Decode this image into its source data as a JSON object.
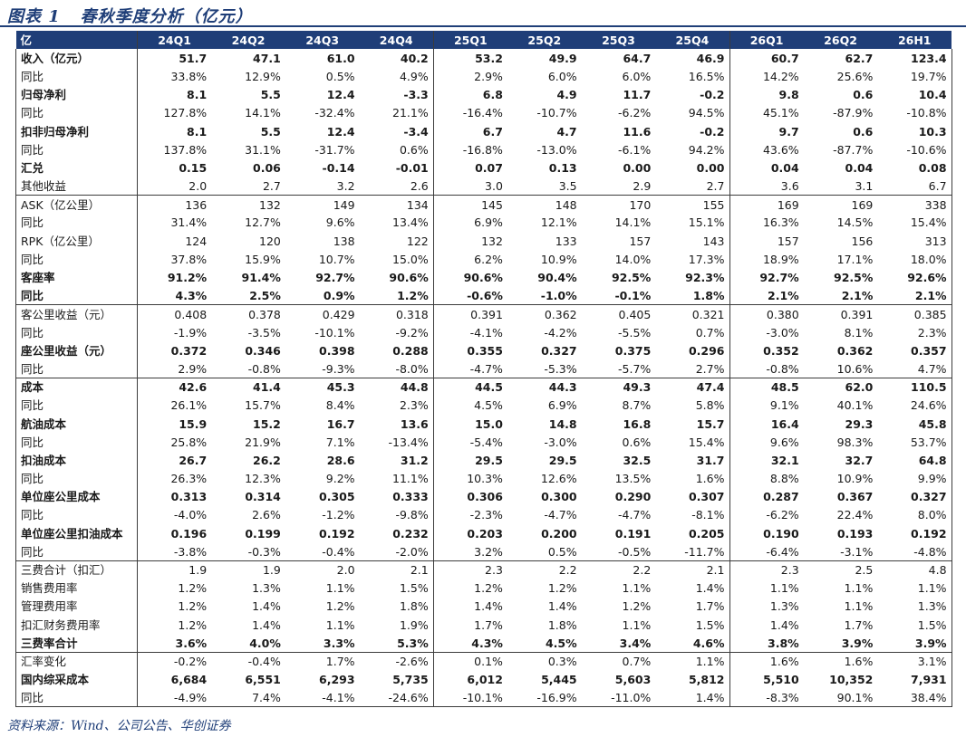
{
  "title": "图表 1   春秋季度分析（亿元）",
  "source": "资料来源：Wind、公司公告、华创证券",
  "colors": {
    "header_bg": "#1f3e78",
    "header_text": "#ffffff",
    "title_color": "#1f3e78",
    "border": "#3c3c3c"
  },
  "table": {
    "headers": [
      "亿",
      "24Q1",
      "24Q2",
      "24Q3",
      "24Q4",
      "25Q1",
      "25Q2",
      "25Q3",
      "25Q4",
      "26Q1",
      "26Q2",
      "26H1"
    ],
    "rows": [
      {
        "label": "收入（亿元）",
        "bold": true,
        "section_start": false,
        "values": [
          "51.7",
          "47.1",
          "61.0",
          "40.2",
          "53.2",
          "49.9",
          "64.7",
          "46.9",
          "60.7",
          "62.7",
          "123.4"
        ]
      },
      {
        "label": "同比",
        "bold": false,
        "section_start": false,
        "values": [
          "33.8%",
          "12.9%",
          "0.5%",
          "4.9%",
          "2.9%",
          "6.0%",
          "6.0%",
          "16.5%",
          "14.2%",
          "25.6%",
          "19.7%"
        ]
      },
      {
        "label": "归母净利",
        "bold": true,
        "section_start": false,
        "values": [
          "8.1",
          "5.5",
          "12.4",
          "-3.3",
          "6.8",
          "4.9",
          "11.7",
          "-0.2",
          "9.8",
          "0.6",
          "10.4"
        ]
      },
      {
        "label": "同比",
        "bold": false,
        "section_start": false,
        "values": [
          "127.8%",
          "14.1%",
          "-32.4%",
          "21.1%",
          "-16.4%",
          "-10.7%",
          "-6.2%",
          "94.5%",
          "45.1%",
          "-87.9%",
          "-10.8%"
        ]
      },
      {
        "label": "扣非归母净利",
        "bold": true,
        "section_start": false,
        "values": [
          "8.1",
          "5.5",
          "12.4",
          "-3.4",
          "6.7",
          "4.7",
          "11.6",
          "-0.2",
          "9.7",
          "0.6",
          "10.3"
        ]
      },
      {
        "label": "同比",
        "bold": false,
        "section_start": false,
        "values": [
          "137.8%",
          "31.1%",
          "-31.7%",
          "0.6%",
          "-16.8%",
          "-13.0%",
          "-6.1%",
          "94.2%",
          "43.6%",
          "-87.7%",
          "-10.6%"
        ]
      },
      {
        "label": "汇兑",
        "bold": true,
        "section_start": false,
        "values": [
          "0.15",
          "0.06",
          "-0.14",
          "-0.01",
          "0.07",
          "0.13",
          "0.00",
          "0.00",
          "0.04",
          "0.04",
          "0.08"
        ]
      },
      {
        "label": "其他收益",
        "bold": false,
        "section_start": false,
        "values": [
          "2.0",
          "2.7",
          "3.2",
          "2.6",
          "3.0",
          "3.5",
          "2.9",
          "2.7",
          "3.6",
          "3.1",
          "6.7"
        ]
      },
      {
        "label": "ASK（亿公里）",
        "bold": false,
        "section_start": true,
        "values": [
          "136",
          "132",
          "149",
          "134",
          "145",
          "148",
          "170",
          "155",
          "169",
          "169",
          "338"
        ]
      },
      {
        "label": "同比",
        "bold": false,
        "section_start": false,
        "values": [
          "31.4%",
          "12.7%",
          "9.6%",
          "13.4%",
          "6.9%",
          "12.1%",
          "14.1%",
          "15.1%",
          "16.3%",
          "14.5%",
          "15.4%"
        ]
      },
      {
        "label": "RPK（亿公里）",
        "bold": false,
        "section_start": false,
        "values": [
          "124",
          "120",
          "138",
          "122",
          "132",
          "133",
          "157",
          "143",
          "157",
          "156",
          "313"
        ]
      },
      {
        "label": "同比",
        "bold": false,
        "section_start": false,
        "values": [
          "37.8%",
          "15.9%",
          "10.7%",
          "15.0%",
          "6.2%",
          "10.9%",
          "14.0%",
          "17.3%",
          "18.9%",
          "17.1%",
          "18.0%"
        ]
      },
      {
        "label": "客座率",
        "bold": true,
        "section_start": false,
        "values": [
          "91.2%",
          "91.4%",
          "92.7%",
          "90.6%",
          "90.6%",
          "90.4%",
          "92.5%",
          "92.3%",
          "92.7%",
          "92.5%",
          "92.6%"
        ]
      },
      {
        "label": "同比",
        "bold": true,
        "section_start": false,
        "values": [
          "4.3%",
          "2.5%",
          "0.9%",
          "1.2%",
          "-0.6%",
          "-1.0%",
          "-0.1%",
          "1.8%",
          "2.1%",
          "2.1%",
          "2.1%"
        ]
      },
      {
        "label": "客公里收益（元）",
        "bold": false,
        "section_start": true,
        "values": [
          "0.408",
          "0.378",
          "0.429",
          "0.318",
          "0.391",
          "0.362",
          "0.405",
          "0.321",
          "0.380",
          "0.391",
          "0.385"
        ]
      },
      {
        "label": "同比",
        "bold": false,
        "section_start": false,
        "values": [
          "-1.9%",
          "-3.5%",
          "-10.1%",
          "-9.2%",
          "-4.1%",
          "-4.2%",
          "-5.5%",
          "0.7%",
          "-3.0%",
          "8.1%",
          "2.3%"
        ]
      },
      {
        "label": "座公里收益（元）",
        "bold": true,
        "section_start": false,
        "values": [
          "0.372",
          "0.346",
          "0.398",
          "0.288",
          "0.355",
          "0.327",
          "0.375",
          "0.296",
          "0.352",
          "0.362",
          "0.357"
        ]
      },
      {
        "label": "同比",
        "bold": false,
        "section_start": false,
        "values": [
          "2.9%",
          "-0.8%",
          "-9.3%",
          "-8.0%",
          "-4.7%",
          "-5.3%",
          "-5.7%",
          "2.7%",
          "-0.8%",
          "10.6%",
          "4.7%"
        ]
      },
      {
        "label": "成本",
        "bold": true,
        "section_start": true,
        "values": [
          "42.6",
          "41.4",
          "45.3",
          "44.8",
          "44.5",
          "44.3",
          "49.3",
          "47.4",
          "48.5",
          "62.0",
          "110.5"
        ]
      },
      {
        "label": "同比",
        "bold": false,
        "section_start": false,
        "values": [
          "26.1%",
          "15.7%",
          "8.4%",
          "2.3%",
          "4.5%",
          "6.9%",
          "8.7%",
          "5.8%",
          "9.1%",
          "40.1%",
          "24.6%"
        ]
      },
      {
        "label": "航油成本",
        "bold": true,
        "section_start": false,
        "values": [
          "15.9",
          "15.2",
          "16.7",
          "13.6",
          "15.0",
          "14.8",
          "16.8",
          "15.7",
          "16.4",
          "29.3",
          "45.8"
        ]
      },
      {
        "label": "同比",
        "bold": false,
        "section_start": false,
        "values": [
          "25.8%",
          "21.9%",
          "7.1%",
          "-13.4%",
          "-5.4%",
          "-3.0%",
          "0.6%",
          "15.4%",
          "9.6%",
          "98.3%",
          "53.7%"
        ]
      },
      {
        "label": "扣油成本",
        "bold": true,
        "section_start": false,
        "values": [
          "26.7",
          "26.2",
          "28.6",
          "31.2",
          "29.5",
          "29.5",
          "32.5",
          "31.7",
          "32.1",
          "32.7",
          "64.8"
        ]
      },
      {
        "label": "同比",
        "bold": false,
        "section_start": false,
        "values": [
          "26.3%",
          "12.3%",
          "9.2%",
          "11.1%",
          "10.3%",
          "12.6%",
          "13.5%",
          "1.6%",
          "8.8%",
          "10.9%",
          "9.9%"
        ]
      },
      {
        "label": "单位座公里成本",
        "bold": true,
        "section_start": false,
        "values": [
          "0.313",
          "0.314",
          "0.305",
          "0.333",
          "0.306",
          "0.300",
          "0.290",
          "0.307",
          "0.287",
          "0.367",
          "0.327"
        ]
      },
      {
        "label": "同比",
        "bold": false,
        "section_start": false,
        "values": [
          "-4.0%",
          "2.6%",
          "-1.2%",
          "-9.8%",
          "-2.3%",
          "-4.7%",
          "-4.7%",
          "-8.1%",
          "-6.2%",
          "22.4%",
          "8.0%"
        ]
      },
      {
        "label": "单位座公里扣油成本",
        "bold": true,
        "section_start": false,
        "values": [
          "0.196",
          "0.199",
          "0.192",
          "0.232",
          "0.203",
          "0.200",
          "0.191",
          "0.205",
          "0.190",
          "0.193",
          "0.192"
        ]
      },
      {
        "label": "同比",
        "bold": false,
        "section_start": false,
        "values": [
          "-3.8%",
          "-0.3%",
          "-0.4%",
          "-2.0%",
          "3.2%",
          "0.5%",
          "-0.5%",
          "-11.7%",
          "-6.4%",
          "-3.1%",
          "-4.8%"
        ]
      },
      {
        "label": "三费合计（扣汇）",
        "bold": false,
        "section_start": true,
        "values": [
          "1.9",
          "1.9",
          "2.0",
          "2.1",
          "2.3",
          "2.2",
          "2.2",
          "2.1",
          "2.3",
          "2.5",
          "4.8"
        ]
      },
      {
        "label": "销售费用率",
        "bold": false,
        "section_start": false,
        "values": [
          "1.2%",
          "1.3%",
          "1.1%",
          "1.5%",
          "1.2%",
          "1.2%",
          "1.1%",
          "1.4%",
          "1.1%",
          "1.1%",
          "1.1%"
        ]
      },
      {
        "label": "管理费用率",
        "bold": false,
        "section_start": false,
        "values": [
          "1.2%",
          "1.4%",
          "1.2%",
          "1.8%",
          "1.4%",
          "1.4%",
          "1.2%",
          "1.7%",
          "1.3%",
          "1.1%",
          "1.3%"
        ]
      },
      {
        "label": "扣汇财务费用率",
        "bold": false,
        "section_start": false,
        "values": [
          "1.2%",
          "1.4%",
          "1.1%",
          "1.9%",
          "1.7%",
          "1.8%",
          "1.1%",
          "1.5%",
          "1.4%",
          "1.7%",
          "1.5%"
        ]
      },
      {
        "label": "三费率合计",
        "bold": true,
        "section_start": false,
        "values": [
          "3.6%",
          "4.0%",
          "3.3%",
          "5.3%",
          "4.3%",
          "4.5%",
          "3.4%",
          "4.6%",
          "3.8%",
          "3.9%",
          "3.9%"
        ]
      },
      {
        "label": "汇率变化",
        "bold": false,
        "section_start": true,
        "values": [
          "-0.2%",
          "-0.4%",
          "1.7%",
          "-2.6%",
          "0.1%",
          "0.3%",
          "0.7%",
          "1.1%",
          "1.6%",
          "1.6%",
          "3.1%"
        ]
      },
      {
        "label": "国内综采成本",
        "bold": true,
        "section_start": false,
        "values": [
          "6,684",
          "6,551",
          "6,293",
          "5,735",
          "6,012",
          "5,445",
          "5,603",
          "5,812",
          "5,510",
          "10,352",
          "7,931"
        ]
      },
      {
        "label": "同比",
        "bold": false,
        "section_start": false,
        "values": [
          "-4.9%",
          "7.4%",
          "-4.1%",
          "-24.6%",
          "-10.1%",
          "-16.9%",
          "-11.0%",
          "1.4%",
          "-8.3%",
          "90.1%",
          "38.4%"
        ]
      }
    ]
  }
}
